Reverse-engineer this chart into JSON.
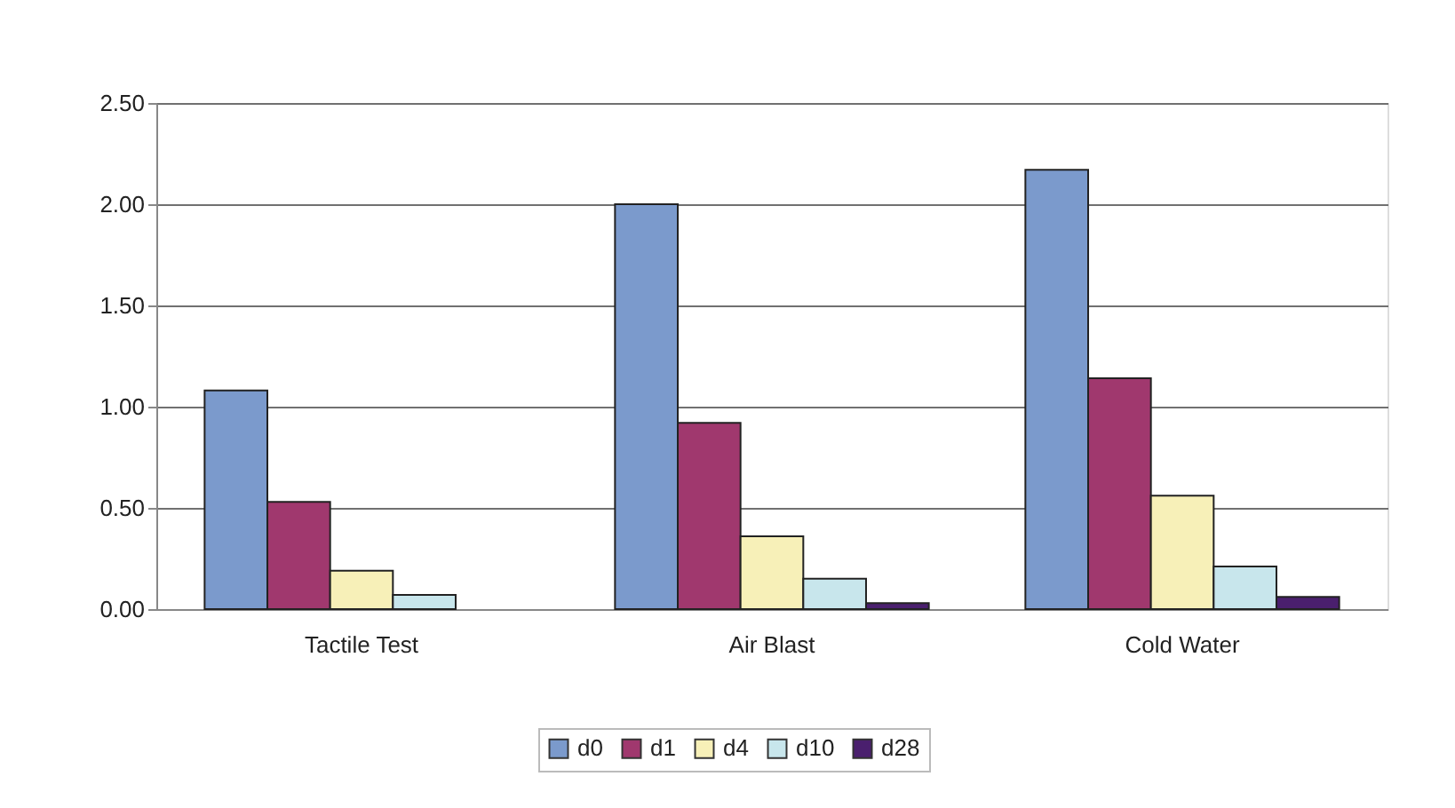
{
  "chart_data": {
    "type": "bar",
    "categories": [
      "Tactile Test",
      "Air Blast",
      "Cold Water"
    ],
    "series": [
      {
        "name": "d0",
        "color": "#7b9acc",
        "values": [
          1.08,
          2.0,
          2.17
        ]
      },
      {
        "name": "d1",
        "color": "#a0386e",
        "values": [
          0.53,
          0.92,
          1.14
        ]
      },
      {
        "name": "d4",
        "color": "#f7f0b8",
        "values": [
          0.19,
          0.36,
          0.56
        ]
      },
      {
        "name": "d10",
        "color": "#c8e6ec",
        "values": [
          0.07,
          0.15,
          0.21
        ]
      },
      {
        "name": "d28",
        "color": "#4a1f6e",
        "values": [
          null,
          0.03,
          0.06
        ]
      }
    ],
    "ylim": [
      0,
      2.5
    ],
    "yticks": [
      {
        "value": 0,
        "label": "0.00"
      },
      {
        "value": 0.5,
        "label": "0.50"
      },
      {
        "value": 1,
        "label": "1.00"
      },
      {
        "value": 1.5,
        "label": "1.50"
      },
      {
        "value": 2,
        "label": "2.00"
      },
      {
        "value": 2.5,
        "label": "2.50"
      }
    ],
    "grid": "y",
    "legend": "bottom"
  }
}
